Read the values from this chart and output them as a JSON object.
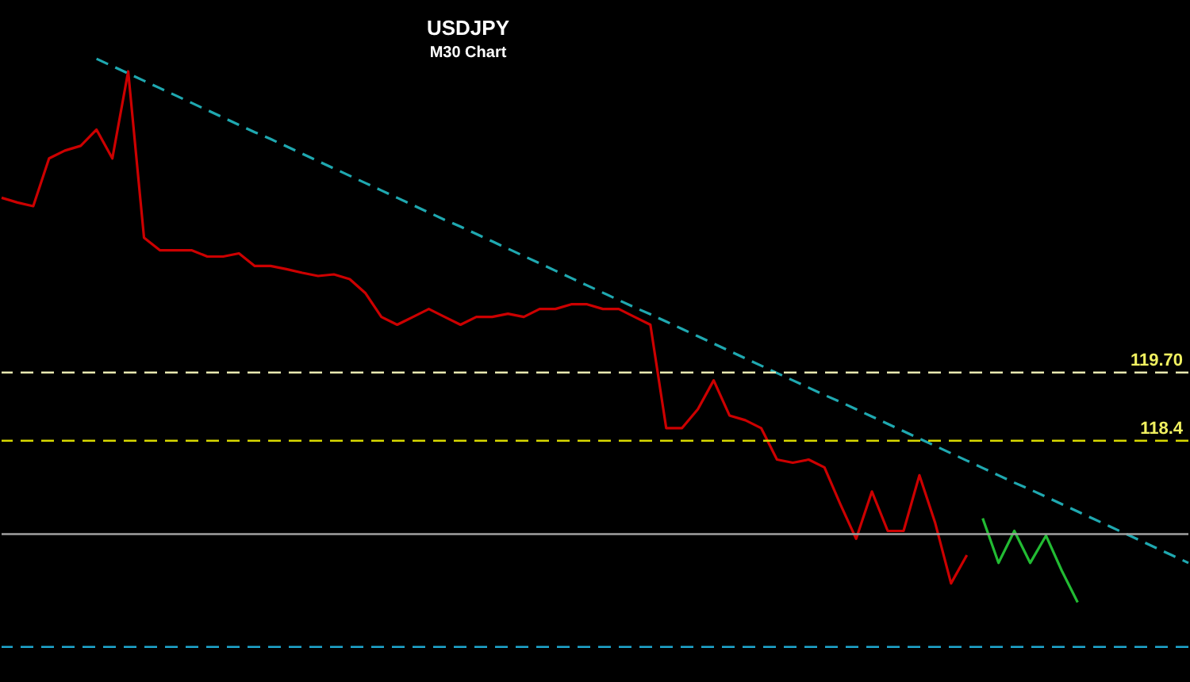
{
  "chart_data": {
    "type": "line",
    "title": "USDJPY",
    "subtitle": "M30 Chart",
    "tick_labels": "y",
    "grid": false,
    "line_style": "solid",
    "marker": "none",
    "ylim": [
      113.8,
      126.8
    ],
    "yticks": [
      {
        "value": 119.7,
        "label": "119.70"
      },
      118.4
    ],
    "categories": [
      null,
      null,
      null,
      null,
      null,
      null,
      null,
      null,
      null,
      null,
      null,
      null,
      null,
      null,
      null,
      null,
      null,
      null,
      null,
      null,
      null,
      null,
      null,
      null,
      null,
      null,
      null,
      null,
      null,
      null,
      null,
      null,
      null,
      null,
      null,
      null,
      null,
      null,
      null,
      null,
      null,
      null,
      null,
      null,
      null,
      null,
      null,
      null,
      null,
      null,
      null,
      null,
      null,
      null,
      null,
      null,
      null,
      null,
      null,
      null,
      null,
      null,
      null,
      null,
      null,
      null,
      null,
      null,
      null,
      null,
      null,
      null,
      null,
      null,
      null,
      null
    ],
    "series": [
      {
        "color": "#cc0000",
        "values": [
          123.03,
          122.94,
          122.87,
          123.78,
          123.93,
          124.02,
          124.33,
          123.78,
          125.44,
          122.27,
          122.03,
          122.03,
          122.03,
          121.91,
          121.91,
          121.97,
          121.73,
          121.73,
          121.67,
          121.6,
          121.54,
          121.57,
          121.48,
          121.21,
          120.76,
          120.61,
          120.76,
          120.91,
          120.76,
          120.61,
          120.76,
          120.76,
          120.82,
          120.76,
          120.91,
          120.91,
          121.0,
          121.0,
          120.91,
          120.91,
          120.76,
          120.61,
          118.64,
          118.64,
          119.0,
          119.55,
          118.88,
          118.79,
          118.64,
          118.04,
          117.98,
          118.04,
          117.89,
          117.19,
          116.53,
          117.43,
          116.68,
          116.68,
          117.74,
          116.83,
          115.68,
          116.22,
          null,
          null,
          null,
          null,
          null,
          null,
          null,
          null,
          null,
          null,
          null,
          null,
          null,
          null
        ]
      },
      {
        "color": "#22bb33",
        "values": [
          null,
          null,
          null,
          null,
          null,
          null,
          null,
          null,
          null,
          null,
          null,
          null,
          null,
          null,
          null,
          null,
          null,
          null,
          null,
          null,
          null,
          null,
          null,
          null,
          null,
          null,
          null,
          null,
          null,
          null,
          null,
          null,
          null,
          null,
          null,
          null,
          null,
          null,
          null,
          null,
          null,
          null,
          null,
          null,
          null,
          null,
          null,
          null,
          null,
          null,
          null,
          null,
          null,
          null,
          null,
          null,
          null,
          null,
          null,
          null,
          null,
          null,
          116.92,
          116.07,
          116.68,
          116.07,
          116.59,
          115.92,
          115.32,
          null,
          null,
          null,
          null,
          null,
          null,
          null
        ]
      },
      {
        "color": "#1fa8b0",
        "line_style": "dashed",
        "values": [
          null,
          null,
          null,
          null,
          null,
          null,
          125.68,
          125.54,
          125.4,
          125.26,
          125.12,
          124.98,
          124.84,
          124.7,
          124.56,
          124.42,
          124.28,
          124.15,
          124.01,
          123.87,
          123.73,
          123.59,
          123.45,
          123.31,
          123.17,
          123.03,
          122.89,
          122.75,
          122.61,
          122.48,
          122.34,
          122.2,
          122.06,
          121.92,
          121.78,
          121.64,
          121.5,
          121.36,
          121.22,
          121.08,
          120.94,
          120.81,
          120.67,
          120.53,
          120.39,
          120.25,
          120.11,
          119.97,
          119.83,
          119.69,
          119.55,
          119.41,
          119.27,
          119.14,
          119.0,
          118.86,
          118.72,
          118.58,
          118.44,
          118.3,
          118.16,
          118.02,
          117.88,
          117.74,
          117.6,
          117.47,
          117.33,
          117.19,
          117.05,
          116.91,
          116.77,
          116.63,
          116.49,
          116.35,
          116.21,
          116.07
        ]
      }
    ],
    "ref_lines": [
      {
        "axis": "y",
        "value": 119.7,
        "color": "#e8e8b0",
        "line_style": "dashed"
      },
      {
        "axis": "y",
        "value": 118.4,
        "color": "#d8d800",
        "line_style": "dashed"
      },
      {
        "axis": "y",
        "value": 116.62,
        "color": "#a0a0a0",
        "line_style": "solid"
      },
      {
        "axis": "y",
        "value": 114.47,
        "color": "#1fa8d0",
        "line_style": "dashed"
      }
    ]
  }
}
